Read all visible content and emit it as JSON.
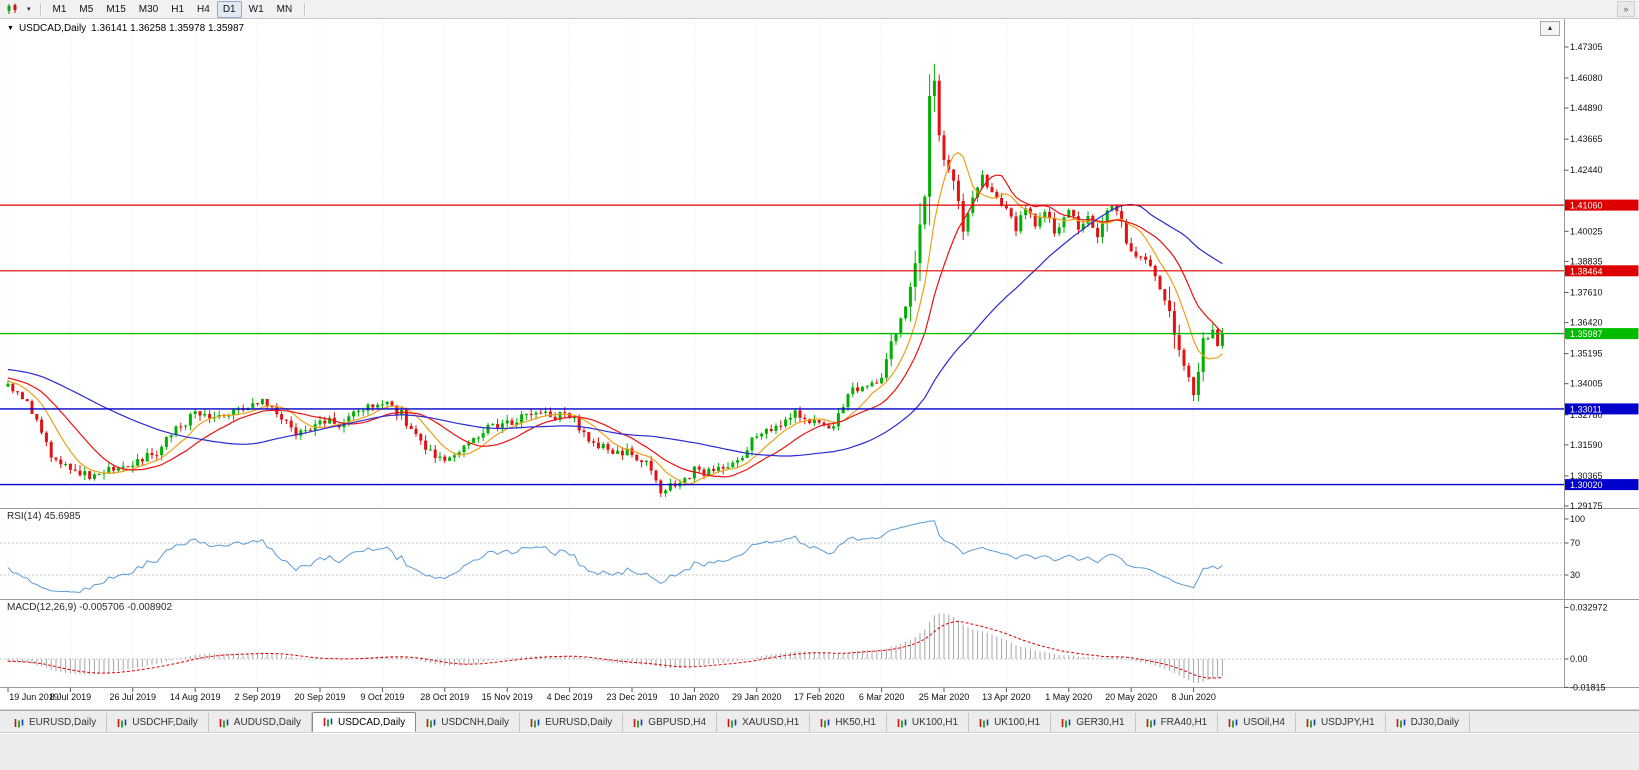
{
  "icons": {
    "symbol_dropdown": "▼",
    "toolbar_dropdown": "▾",
    "toolbar_overflow": "»",
    "chart_collapse": "▲"
  },
  "toolbar": {
    "timeframes": [
      "M1",
      "M5",
      "M15",
      "M30",
      "H1",
      "H4",
      "D1",
      "W1",
      "MN"
    ],
    "active_timeframe": "D1"
  },
  "chart": {
    "symbol_line": "USDCAD,Daily",
    "ohlc": "1.36141 1.36258 1.35978 1.35987"
  },
  "panels": {
    "rsi_label": "RSI(14) 45.6985",
    "macd_label": "MACD(12,26,9) -0.005706 -0.008902"
  },
  "chart_data": {
    "type": "candlestick",
    "symbol": "USDCAD",
    "timeframe": "Daily",
    "last_open": 1.36141,
    "last_high": 1.36258,
    "last_low": 1.35978,
    "last_close": 1.35987,
    "price_range": [
      1.29097,
      1.48411
    ],
    "price_axis_ticks": [
      "1.47305",
      "1.46080",
      "1.44890",
      "1.43665",
      "1.42440",
      "1.40025",
      "1.38835",
      "1.37610",
      "1.36420",
      "1.35195",
      "1.34005",
      "1.32780",
      "1.31590",
      "1.30365",
      "1.29175"
    ],
    "x_labels": [
      "19 Jun 2019",
      "8 Jul 2019",
      "26 Jul 2019",
      "14 Aug 2019",
      "2 Sep 2019",
      "20 Sep 2019",
      "9 Oct 2019",
      "28 Oct 2019",
      "15 Nov 2019",
      "4 Dec 2019",
      "23 Dec 2019",
      "10 Jan 2020",
      "29 Jan 2020",
      "17 Feb 2020",
      "6 Mar 2020",
      "25 Mar 2020",
      "13 Apr 2020",
      "1 May 2020",
      "20 May 2020",
      "8 Jun 2020"
    ],
    "x_label_step": 13,
    "bar_count": 254,
    "pre_bars": 50,
    "up_color": "#00b000",
    "down_color": "#e01212",
    "anchors": [
      [
        -50,
        1.347
      ],
      [
        -35,
        1.3502
      ],
      [
        -20,
        1.3455
      ],
      [
        -10,
        1.3432
      ],
      [
        0,
        1.34
      ],
      [
        4,
        1.3332
      ],
      [
        9,
        1.3122
      ],
      [
        13,
        1.3065
      ],
      [
        17,
        1.3042
      ],
      [
        22,
        1.306
      ],
      [
        26,
        1.3082
      ],
      [
        31,
        1.313
      ],
      [
        36,
        1.324
      ],
      [
        39,
        1.3276
      ],
      [
        43,
        1.3255
      ],
      [
        47,
        1.329
      ],
      [
        52,
        1.333
      ],
      [
        55,
        1.3312
      ],
      [
        60,
        1.3196
      ],
      [
        63,
        1.323
      ],
      [
        65,
        1.3264
      ],
      [
        69,
        1.324
      ],
      [
        73,
        1.329
      ],
      [
        78,
        1.3326
      ],
      [
        82,
        1.328
      ],
      [
        86,
        1.316
      ],
      [
        91,
        1.309
      ],
      [
        95,
        1.3156
      ],
      [
        100,
        1.323
      ],
      [
        104,
        1.3246
      ],
      [
        110,
        1.3286
      ],
      [
        114,
        1.327
      ],
      [
        117,
        1.328
      ],
      [
        121,
        1.318
      ],
      [
        126,
        1.3136
      ],
      [
        130,
        1.3126
      ],
      [
        133,
        1.308
      ],
      [
        136,
        1.298
      ],
      [
        139,
        1.2996
      ],
      [
        143,
        1.3056
      ],
      [
        147,
        1.3046
      ],
      [
        152,
        1.31
      ],
      [
        156,
        1.32
      ],
      [
        160,
        1.3236
      ],
      [
        164,
        1.3286
      ],
      [
        169,
        1.324
      ],
      [
        172,
        1.323
      ],
      [
        175,
        1.336
      ],
      [
        178,
        1.34
      ],
      [
        182,
        1.3426
      ],
      [
        184,
        1.357
      ],
      [
        186,
        1.366
      ],
      [
        188,
        1.376
      ],
      [
        190,
        1.399
      ],
      [
        192,
        1.445
      ],
      [
        193,
        1.456
      ],
      [
        194,
        1.443
      ],
      [
        195,
        1.428
      ],
      [
        197,
        1.419
      ],
      [
        199,
        1.403
      ],
      [
        201,
        1.415
      ],
      [
        203,
        1.4226
      ],
      [
        205,
        1.415
      ],
      [
        208,
        1.409
      ],
      [
        210,
        1.4016
      ],
      [
        212,
        1.4086
      ],
      [
        214,
        1.403
      ],
      [
        216,
        1.4096
      ],
      [
        218,
        1.4006
      ],
      [
        221,
        1.4076
      ],
      [
        223,
        1.402
      ],
      [
        225,
        1.4066
      ],
      [
        227,
        1.3976
      ],
      [
        229,
        1.41
      ],
      [
        231,
        1.4086
      ],
      [
        234,
        1.392
      ],
      [
        236,
        1.3906
      ],
      [
        238,
        1.385
      ],
      [
        240,
        1.377
      ],
      [
        242,
        1.372
      ],
      [
        244,
        1.35
      ],
      [
        246,
        1.342
      ],
      [
        247,
        1.339
      ],
      [
        249,
        1.3556
      ],
      [
        251,
        1.362
      ],
      [
        252,
        1.3566
      ],
      [
        253,
        1.35987
      ]
    ],
    "moving_averages": [
      {
        "period": 8,
        "color": "#eda118"
      },
      {
        "period": 16,
        "color": "#ee1111"
      },
      {
        "period": 45,
        "color": "#2a2ad4"
      }
    ],
    "levels": [
      {
        "value": 1.4106,
        "label": "1.41060",
        "color": "#dd0000",
        "width": 1.2
      },
      {
        "value": 1.38464,
        "label": "1.38464",
        "color": "#dd0000",
        "width": 1.2
      },
      {
        "value": 1.35987,
        "label": "1.35987",
        "color": "#00bb00",
        "width": 1.4
      },
      {
        "value": 1.33011,
        "label": "1.33011",
        "color": "#0000cc",
        "width": 1.4
      },
      {
        "value": 1.3002,
        "label": "1.30020",
        "color": "#0000cc",
        "width": 1.4
      }
    ],
    "rsi": {
      "period": 14,
      "value": 45.6985,
      "axis": [
        "100",
        "70",
        "30"
      ],
      "color": "#5b9bd5"
    },
    "macd": {
      "fast": 12,
      "slow": 26,
      "signal_period": 9,
      "value": -0.005706,
      "signal_value": -0.008902,
      "axis": [
        "0.032972",
        "0.00",
        "-0.01815"
      ],
      "hist_color": "#a6a6a6",
      "signal_color": "#e00000"
    }
  },
  "tabs": [
    {
      "label": "EURUSD,Daily"
    },
    {
      "label": "USDCHF,Daily"
    },
    {
      "label": "AUDUSD,Daily"
    },
    {
      "label": "USDCAD,Daily",
      "active": true
    },
    {
      "label": "USDCNH,Daily"
    },
    {
      "label": "EURUSD,Daily"
    },
    {
      "label": "GBPUSD,H4"
    },
    {
      "label": "XAUUSD,H1"
    },
    {
      "label": "HK50,H1"
    },
    {
      "label": "UK100,H1"
    },
    {
      "label": "UK100,H1"
    },
    {
      "label": "GER30,H1"
    },
    {
      "label": "FRA40,H1"
    },
    {
      "label": "USOil,H4"
    },
    {
      "label": "USDJPY,H1"
    },
    {
      "label": "DJ30,Daily"
    }
  ]
}
